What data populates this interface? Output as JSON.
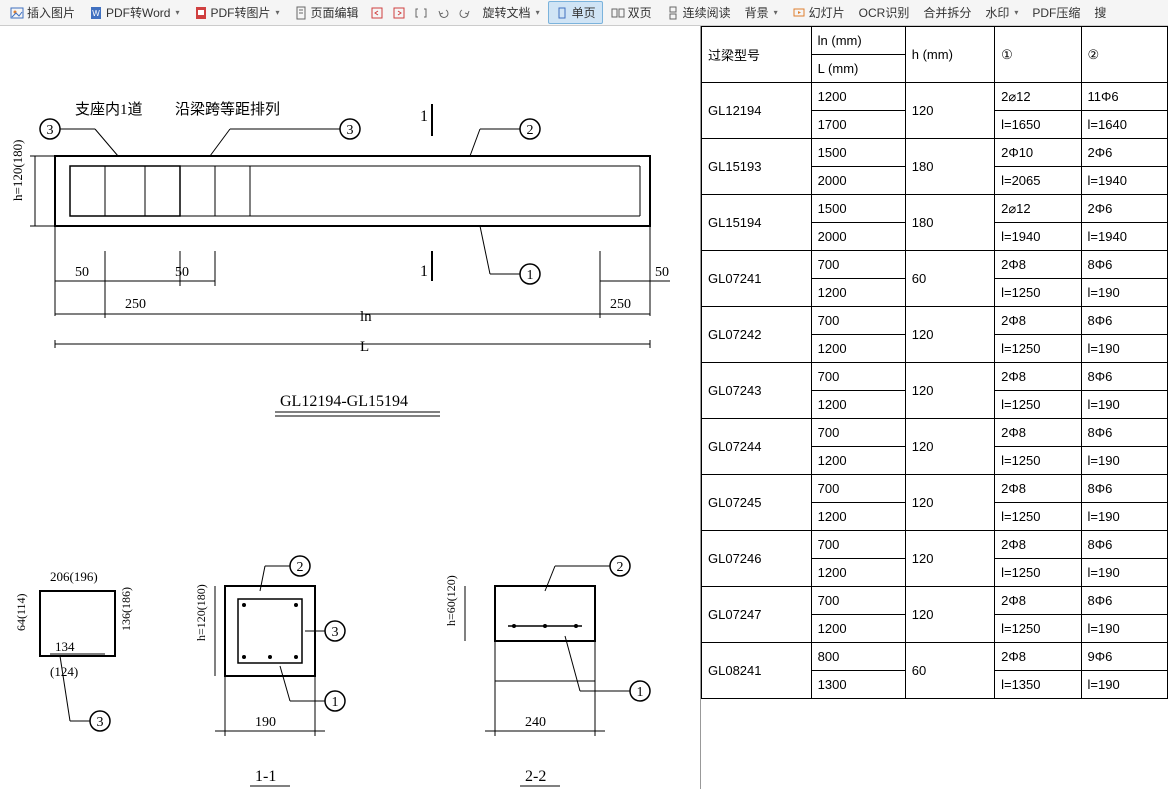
{
  "toolbar": {
    "insert_image": "插入图片",
    "pdf_to_word": "PDF转Word",
    "pdf_to_image": "PDF转图片",
    "page_edit": "页面编辑",
    "rotate_doc": "旋转文档",
    "single_page": "单页",
    "double_page": "双页",
    "continuous": "连续阅读",
    "background": "背景",
    "slideshow": "幻灯片",
    "ocr": "OCR识别",
    "merge_split": "合并拆分",
    "watermark": "水印",
    "pdf_compress": "PDF压缩",
    "search": "搜"
  },
  "diagram": {
    "label_support": "支座内1道",
    "label_span": "沿梁跨等距排列",
    "title_main": "GL12194-GL15194",
    "dim_h": "h=120(180)",
    "dim_50_a": "50",
    "dim_50_b": "50",
    "dim_50_c": "50",
    "dim_250_a": "250",
    "dim_250_b": "250",
    "dim_ln": "ln",
    "dim_L": "L",
    "ref1": "1",
    "ref2": "2",
    "ref3": "3",
    "section1_w": "206(196)",
    "section1_h": "64(114)",
    "section1_inner": "134",
    "section1_below": "(124)",
    "section1_h2": "136(186)",
    "section2_h": "h=120(180)",
    "section2_w": "190",
    "section2_title": "1-1",
    "section3_h": "h=60(120)",
    "section3_w": "240",
    "section3_title": "2-2"
  },
  "table": {
    "headers": {
      "model": "过梁型号",
      "ln": "ln (mm)",
      "L": "L (mm)",
      "h": "h  (mm)",
      "c1": "①",
      "c2": "②"
    },
    "rows": [
      {
        "model": "GL12194",
        "ln": "1200",
        "L": "1700",
        "h": "120",
        "c1a": "2⌀12",
        "c1b": "l=1650",
        "c2a": "11Φ6",
        "c2b": "l=1640"
      },
      {
        "model": "GL15193",
        "ln": "1500",
        "L": "2000",
        "h": "180",
        "c1a": "2Φ10",
        "c1b": "l=2065",
        "c2a": "2Φ6",
        "c2b": "l=1940"
      },
      {
        "model": "GL15194",
        "ln": "1500",
        "L": "2000",
        "h": "180",
        "c1a": "2⌀12",
        "c1b": "l=1940",
        "c2a": "2Φ6",
        "c2b": "l=1940"
      },
      {
        "model": "GL07241",
        "ln": "700",
        "L": "1200",
        "h": "60",
        "c1a": "2Φ8",
        "c1b": "l=1250",
        "c2a": "8Φ6",
        "c2b": "l=190"
      },
      {
        "model": "GL07242",
        "ln": "700",
        "L": "1200",
        "h": "120",
        "c1a": "2Φ8",
        "c1b": "l=1250",
        "c2a": "8Φ6",
        "c2b": "l=190"
      },
      {
        "model": "GL07243",
        "ln": "700",
        "L": "1200",
        "h": "120",
        "c1a": "2Φ8",
        "c1b": "l=1250",
        "c2a": "8Φ6",
        "c2b": "l=190"
      },
      {
        "model": "GL07244",
        "ln": "700",
        "L": "1200",
        "h": "120",
        "c1a": "2Φ8",
        "c1b": "l=1250",
        "c2a": "8Φ6",
        "c2b": "l=190"
      },
      {
        "model": "GL07245",
        "ln": "700",
        "L": "1200",
        "h": "120",
        "c1a": "2Φ8",
        "c1b": "l=1250",
        "c2a": "8Φ6",
        "c2b": "l=190"
      },
      {
        "model": "GL07246",
        "ln": "700",
        "L": "1200",
        "h": "120",
        "c1a": "2Φ8",
        "c1b": "l=1250",
        "c2a": "8Φ6",
        "c2b": "l=190"
      },
      {
        "model": "GL07247",
        "ln": "700",
        "L": "1200",
        "h": "120",
        "c1a": "2Φ8",
        "c1b": "l=1250",
        "c2a": "8Φ6",
        "c2b": "l=190"
      },
      {
        "model": "GL08241",
        "ln": "800",
        "L": "1300",
        "h": "60",
        "c1a": "2Φ8",
        "c1b": "l=1350",
        "c2a": "9Φ6",
        "c2b": "l=190"
      }
    ]
  },
  "colors": {
    "toolbar_bg": "#f5f5f5",
    "active_bg": "#d0e4f5",
    "border": "#000000",
    "icon_red": "#d04040",
    "icon_blue": "#4070c0",
    "icon_orange": "#e08030"
  }
}
